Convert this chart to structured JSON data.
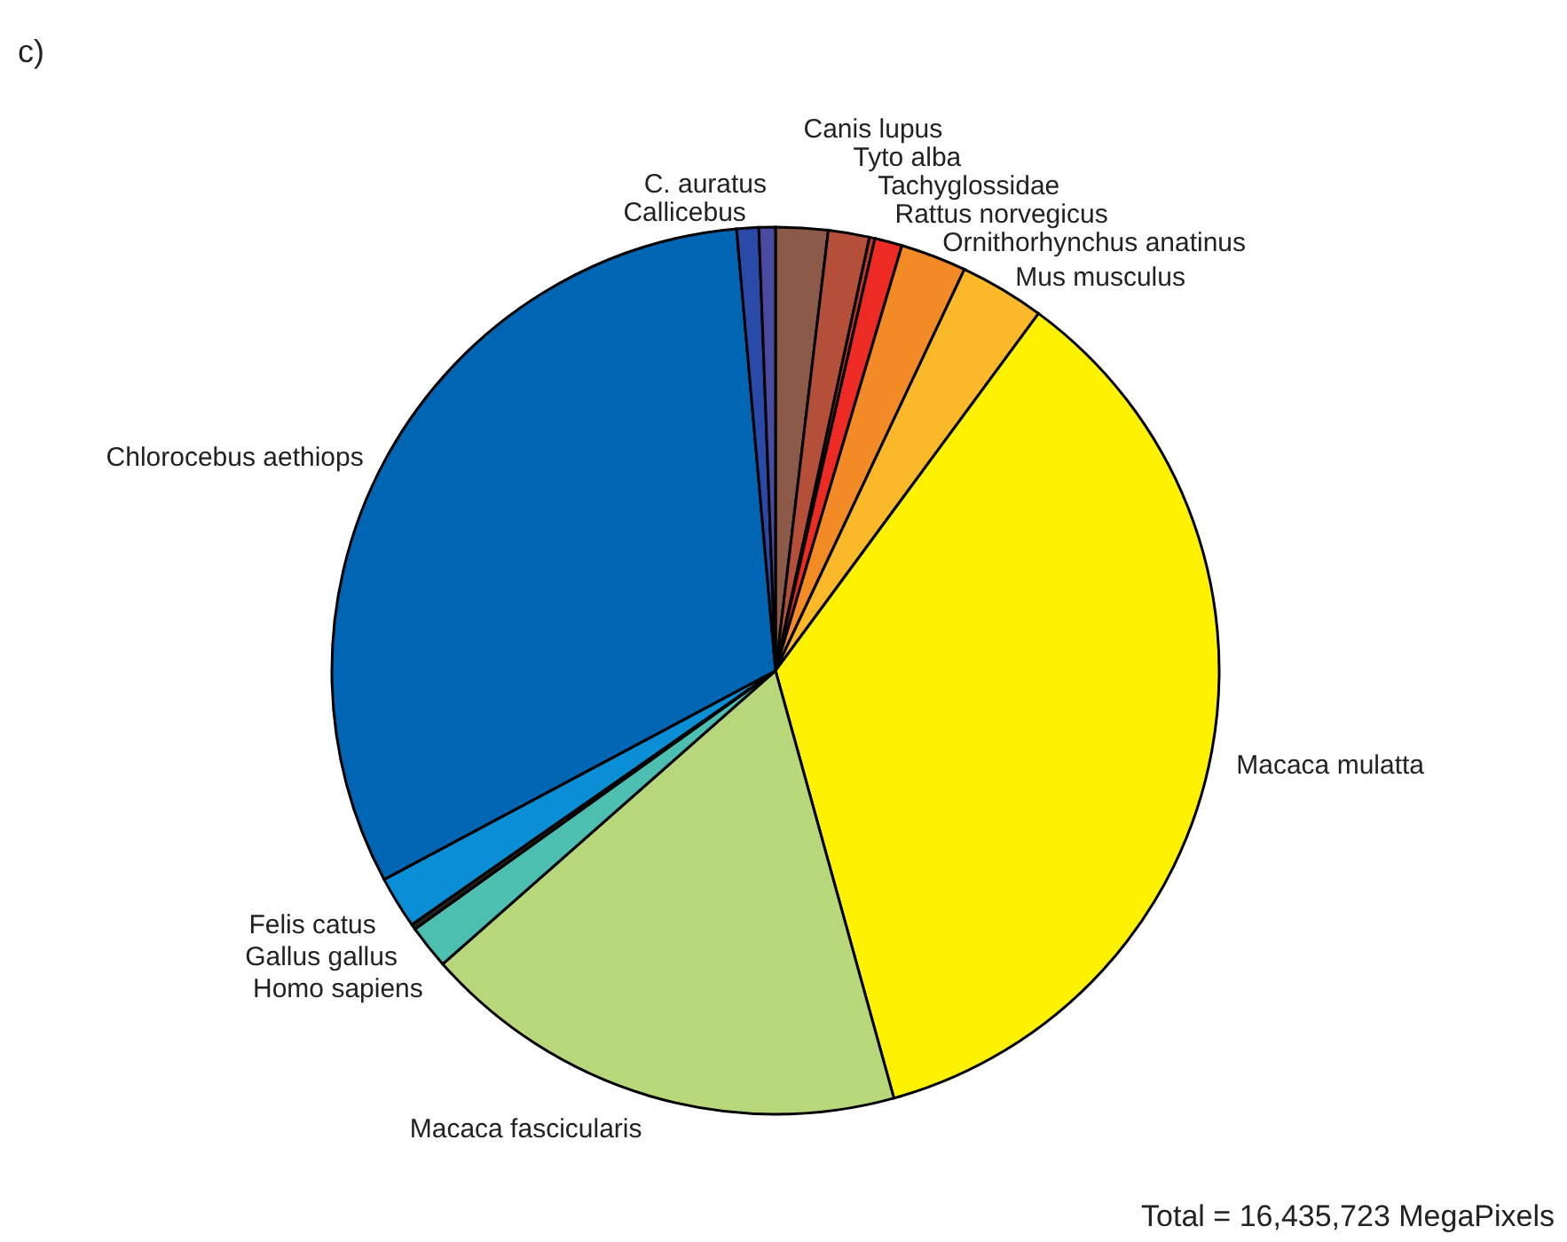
{
  "chart_data": {
    "type": "pie",
    "title": "c)",
    "categories": [
      "Canis lupus",
      "Tyto alba",
      "Tachyglossidae",
      "Rattus norvegicus",
      "Ornithorhynchus anatinus",
      "Mus musculus",
      "Macaca mulatta",
      "Macaca fascicularis",
      "Homo sapiens",
      "Gallus gallus",
      "Felis catus",
      "Chlorocebus aethiops",
      "Callicebus",
      "C. auratus"
    ],
    "values": [
      1.9,
      1.5,
      0.2,
      1.0,
      2.4,
      3.1,
      35.6,
      17.8,
      1.6,
      0.2,
      1.9,
      31.4,
      0.8,
      0.6
    ],
    "colors": [
      "#8c5a48",
      "#b4503a",
      "#c0392b",
      "#ee2a24",
      "#f28a26",
      "#fbb829",
      "#fff200",
      "#b8d67a",
      "#4dbfb0",
      "#222222",
      "#0a8fd6",
      "#0066b3",
      "#2a4aa8",
      "#4a4aa0"
    ],
    "annotations": [
      "Total = 16,435,723 MegaPixels"
    ]
  }
}
